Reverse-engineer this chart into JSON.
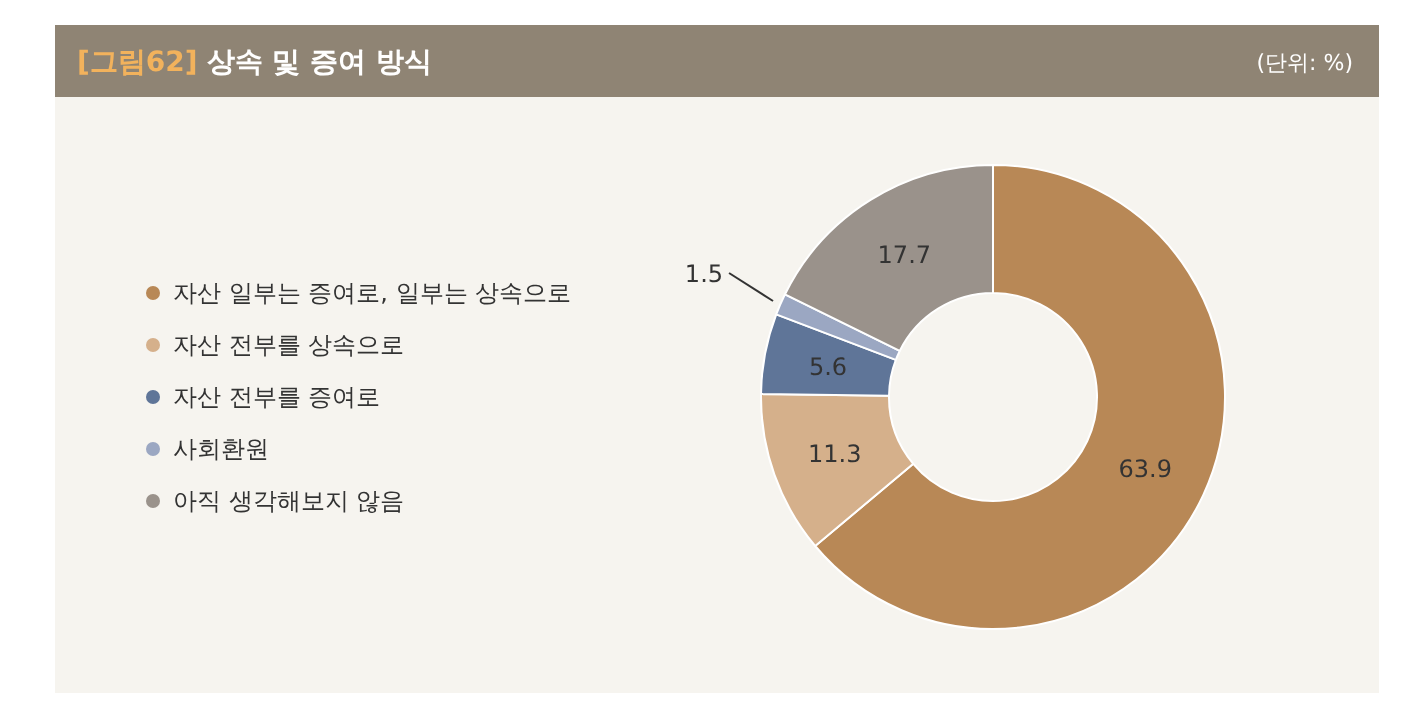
{
  "chart_data": {
    "type": "donut",
    "title": "[그림62] 상속 및 증여 방식",
    "subtitle": "(단위: %)",
    "categories": [
      "자산 일부는 증여로, 일부는 상속으로",
      "자산 전부를 상속으로",
      "자산 전부를 증여로",
      "사회환원",
      "아직 생각해보지 않음"
    ],
    "values": [
      63.9,
      11.3,
      5.6,
      1.5,
      17.7
    ],
    "colors": [
      "#b88856",
      "#d5b08b",
      "#5f7598",
      "#9ba7c2",
      "#9a928b"
    ],
    "data_labels": true,
    "legend": "left"
  }
}
